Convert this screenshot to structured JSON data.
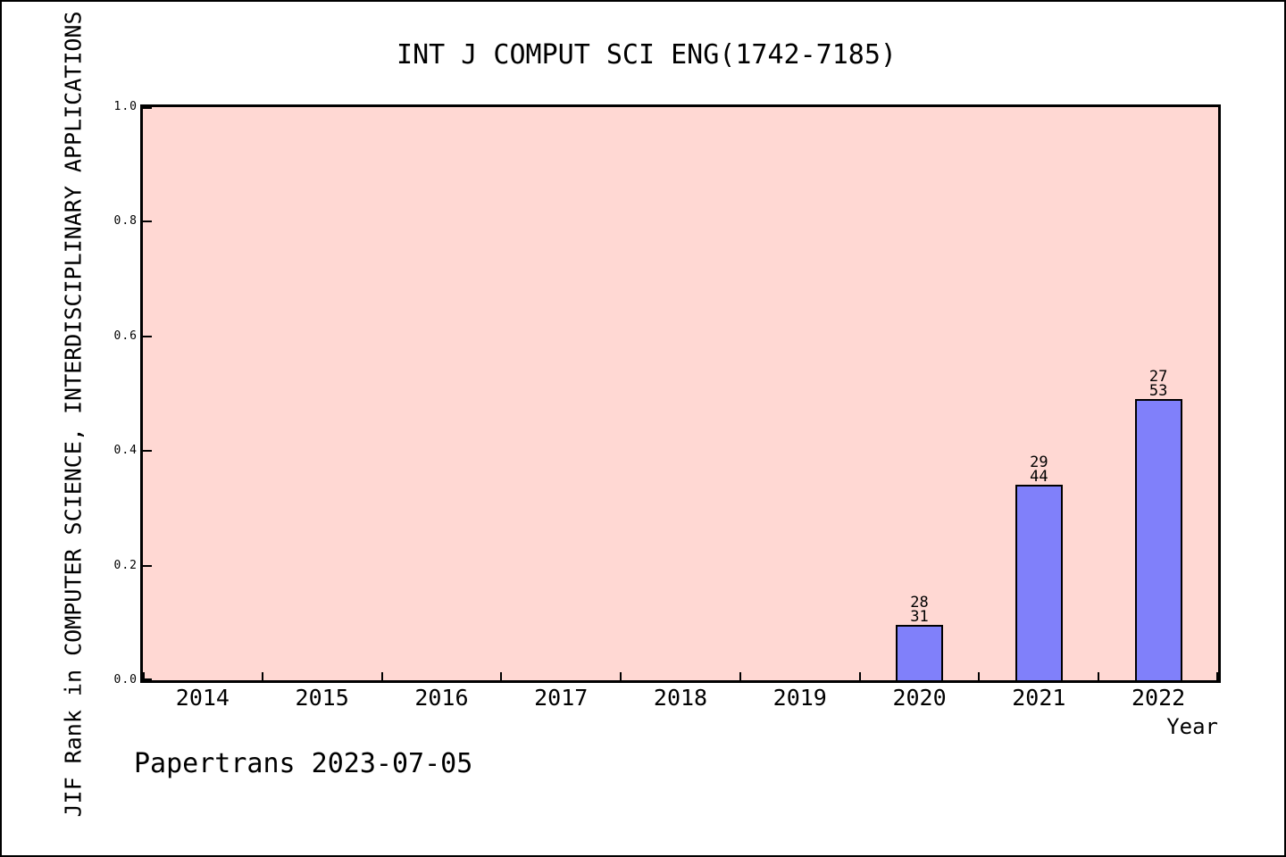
{
  "footer": {
    "text": "Papertrans 2023-07-05"
  },
  "chart_data": {
    "type": "bar",
    "title": "INT J COMPUT SCI ENG(1742-7185)",
    "xlabel": "Year",
    "ylabel": "JIF Rank in COMPUTER SCIENCE, INTERDISCIPLINARY APPLICATIONS",
    "categories": [
      "2014",
      "2015",
      "2016",
      "2017",
      "2018",
      "2019",
      "2020",
      "2021",
      "2022"
    ],
    "values": [
      null,
      null,
      null,
      null,
      null,
      null,
      0.0968,
      0.3409,
      0.4906
    ],
    "bar_labels": [
      null,
      null,
      null,
      null,
      null,
      null,
      [
        "28",
        "31"
      ],
      [
        "29",
        "44"
      ],
      [
        "27",
        "53"
      ]
    ],
    "ytick_labels": [
      "0.0",
      "0.2",
      "0.4",
      "0.6",
      "0.8",
      "1.0"
    ],
    "ylim": [
      0.0,
      1.0
    ],
    "grid": false,
    "legend": "none",
    "colors": {
      "plot_bg": "#ffd8d3",
      "bar_fill": "#8080fa",
      "bar_edge": "#000000",
      "frame": "#000000",
      "text": "#000000"
    }
  }
}
